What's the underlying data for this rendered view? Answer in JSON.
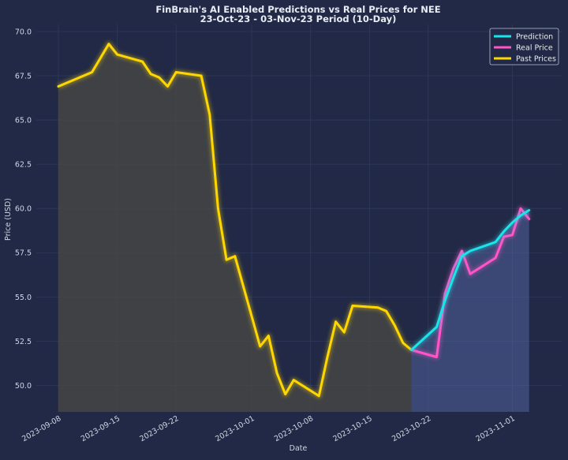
{
  "chart_data": {
    "type": "line",
    "title": "FinBrain's AI Enabled Predictions vs Real Prices for NEE",
    "subtitle": "23-Oct-23 - 03-Nov-23 Period (10-Day)",
    "xlabel": "Date",
    "ylabel": "Price (USD)",
    "xlim": [
      "2023-09-08",
      "2023-11-05"
    ],
    "ylim": [
      48.5,
      70.4
    ],
    "x_ticks": [
      "2023-09-08",
      "2023-09-15",
      "2023-09-22",
      "2023-10-01",
      "2023-10-08",
      "2023-10-15",
      "2023-10-22",
      "2023-11-01"
    ],
    "y_ticks": [
      50.0,
      52.5,
      55.0,
      57.5,
      60.0,
      62.5,
      65.0,
      67.5,
      70.0
    ],
    "grid": true,
    "legend_position": "top-right",
    "series": [
      {
        "name": "Past Prices",
        "color": "#ffd700",
        "points": [
          [
            "2023-09-08",
            66.9
          ],
          [
            "2023-09-11",
            67.5
          ],
          [
            "2023-09-12",
            67.7
          ],
          [
            "2023-09-13",
            68.5
          ],
          [
            "2023-09-14",
            69.3
          ],
          [
            "2023-09-15",
            68.7
          ],
          [
            "2023-09-18",
            68.3
          ],
          [
            "2023-09-19",
            67.6
          ],
          [
            "2023-09-20",
            67.4
          ],
          [
            "2023-09-21",
            66.9
          ],
          [
            "2023-09-22",
            67.7
          ],
          [
            "2023-09-25",
            67.5
          ],
          [
            "2023-09-26",
            65.3
          ],
          [
            "2023-09-27",
            60.0
          ],
          [
            "2023-09-28",
            57.1
          ],
          [
            "2023-09-29",
            57.3
          ],
          [
            "2023-10-02",
            52.2
          ],
          [
            "2023-10-03",
            52.8
          ],
          [
            "2023-10-04",
            50.7
          ],
          [
            "2023-10-05",
            49.5
          ],
          [
            "2023-10-06",
            50.3
          ],
          [
            "2023-10-09",
            49.4
          ],
          [
            "2023-10-10",
            51.6
          ],
          [
            "2023-10-11",
            53.6
          ],
          [
            "2023-10-12",
            53.0
          ],
          [
            "2023-10-13",
            54.5
          ],
          [
            "2023-10-16",
            54.4
          ],
          [
            "2023-10-17",
            54.2
          ],
          [
            "2023-10-18",
            53.4
          ],
          [
            "2023-10-19",
            52.4
          ],
          [
            "2023-10-20",
            52.0
          ]
        ]
      },
      {
        "name": "Prediction",
        "color": "#19e5ea",
        "points": [
          [
            "2023-10-20",
            52.0
          ],
          [
            "2023-10-23",
            53.3
          ],
          [
            "2023-10-24",
            54.8
          ],
          [
            "2023-10-25",
            56.1
          ],
          [
            "2023-10-26",
            57.3
          ],
          [
            "2023-10-27",
            57.6
          ],
          [
            "2023-10-30",
            58.1
          ],
          [
            "2023-10-31",
            58.7
          ],
          [
            "2023-11-01",
            59.2
          ],
          [
            "2023-11-02",
            59.6
          ],
          [
            "2023-11-03",
            59.9
          ]
        ]
      },
      {
        "name": "Real Price",
        "color": "#ff55c8",
        "points": [
          [
            "2023-10-20",
            52.0
          ],
          [
            "2023-10-23",
            51.6
          ],
          [
            "2023-10-24",
            55.2
          ],
          [
            "2023-10-25",
            56.6
          ],
          [
            "2023-10-26",
            57.6
          ],
          [
            "2023-10-27",
            56.3
          ],
          [
            "2023-10-30",
            57.2
          ],
          [
            "2023-10-31",
            58.4
          ],
          [
            "2023-11-01",
            58.5
          ],
          [
            "2023-11-02",
            60.0
          ],
          [
            "2023-11-03",
            59.4
          ]
        ]
      }
    ]
  }
}
